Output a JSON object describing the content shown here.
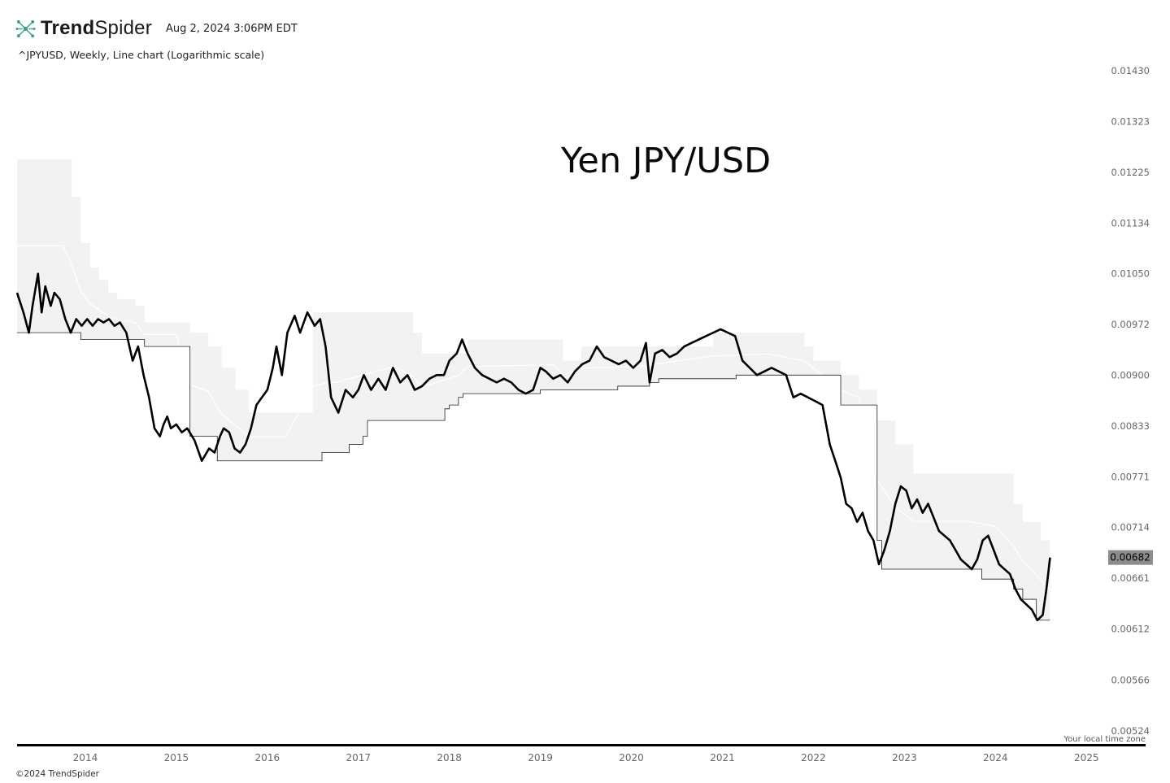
{
  "header": {
    "brand_bold": "Trend",
    "brand_light": "Spider",
    "timestamp": "Aug 2, 2024 3:06PM EDT",
    "subtitle": "^JPYUSD, Weekly, Line chart (Logarithmic scale)"
  },
  "footer": {
    "copyright": "©2024 TrendSpider",
    "timezone_note": "Your local time zone"
  },
  "chart_data": {
    "type": "line",
    "title": "Yen JPY/USD",
    "symbol": "^JPYUSD",
    "interval": "Weekly",
    "scale": "log",
    "ylim": [
      0.00513,
      0.0146
    ],
    "xlim": [
      2013.25,
      2025.65
    ],
    "y_ticks": [
      "0.01430",
      "0.01323",
      "0.01225",
      "0.01134",
      "0.01050",
      "0.00972",
      "0.00900",
      "0.00833",
      "0.00771",
      "0.00714",
      "0.00661",
      "0.00612",
      "0.00566",
      "0.00524"
    ],
    "x_ticks": [
      "2014",
      "2015",
      "2016",
      "2017",
      "2018",
      "2019",
      "2020",
      "2021",
      "2022",
      "2023",
      "2024",
      "2025"
    ],
    "last_value": "0.00682",
    "grid": false,
    "legend": "none",
    "colors": {
      "price_line": "#000000",
      "band_fill": "#f2f2f2",
      "mid_line": "#ffffff",
      "last_badge": "#8c8c8c"
    },
    "series": [
      {
        "role": "price",
        "x": [
          2013.25,
          2013.32,
          2013.38,
          2013.42,
          2013.48,
          2013.52,
          2013.56,
          2013.62,
          2013.66,
          2013.72,
          2013.78,
          2013.84,
          2013.9,
          2013.96,
          2014.02,
          2014.08,
          2014.14,
          2014.2,
          2014.26,
          2014.32,
          2014.38,
          2014.45,
          2014.52,
          2014.58,
          2014.64,
          2014.7,
          2014.76,
          2014.82,
          2014.86,
          2014.9,
          2014.94,
          2015.0,
          2015.06,
          2015.12,
          2015.2,
          2015.28,
          2015.36,
          2015.42,
          2015.48,
          2015.52,
          2015.58,
          2015.64,
          2015.7,
          2015.76,
          2015.82,
          2015.88,
          2015.94,
          2016.0,
          2016.06,
          2016.1,
          2016.16,
          2016.22,
          2016.3,
          2016.36,
          2016.44,
          2016.52,
          2016.58,
          2016.64,
          2016.7,
          2016.78,
          2016.86,
          2016.94,
          2017.0,
          2017.06,
          2017.14,
          2017.22,
          2017.3,
          2017.38,
          2017.46,
          2017.54,
          2017.62,
          2017.7,
          2017.78,
          2017.86,
          2017.94,
          2018.0,
          2018.08,
          2018.14,
          2018.2,
          2018.28,
          2018.36,
          2018.44,
          2018.52,
          2018.6,
          2018.68,
          2018.76,
          2018.84,
          2018.92,
          2019.0,
          2019.06,
          2019.14,
          2019.22,
          2019.3,
          2019.38,
          2019.46,
          2019.54,
          2019.62,
          2019.7,
          2019.78,
          2019.86,
          2019.94,
          2020.02,
          2020.1,
          2020.16,
          2020.2,
          2020.26,
          2020.34,
          2020.42,
          2020.5,
          2020.58,
          2020.66,
          2020.74,
          2020.82,
          2020.9,
          2020.98,
          2021.06,
          2021.14,
          2021.22,
          2021.3,
          2021.38,
          2021.46,
          2021.54,
          2021.62,
          2021.7,
          2021.78,
          2021.86,
          2021.94,
          2022.02,
          2022.1,
          2022.18,
          2022.24,
          2022.3,
          2022.36,
          2022.42,
          2022.48,
          2022.54,
          2022.6,
          2022.66,
          2022.72,
          2022.78,
          2022.84,
          2022.9,
          2022.96,
          2023.02,
          2023.08,
          2023.14,
          2023.2,
          2023.26,
          2023.32,
          2023.38,
          2023.44,
          2023.5,
          2023.56,
          2023.62,
          2023.68,
          2023.74,
          2023.8,
          2023.86,
          2023.92,
          2023.98,
          2024.04,
          2024.1,
          2024.16,
          2024.22,
          2024.28,
          2024.34,
          2024.4,
          2024.46,
          2024.52,
          2024.56,
          2024.6
        ],
        "values": [
          0.0102,
          0.0099,
          0.0096,
          0.01,
          0.0105,
          0.0099,
          0.0103,
          0.01,
          0.0102,
          0.0101,
          0.0098,
          0.0096,
          0.0098,
          0.0097,
          0.0098,
          0.0097,
          0.0098,
          0.00975,
          0.0098,
          0.0097,
          0.00975,
          0.0096,
          0.0092,
          0.0094,
          0.009,
          0.0087,
          0.0083,
          0.0082,
          0.00835,
          0.00845,
          0.0083,
          0.00835,
          0.00825,
          0.0083,
          0.00815,
          0.0079,
          0.00805,
          0.008,
          0.0082,
          0.0083,
          0.00825,
          0.00805,
          0.008,
          0.0081,
          0.0083,
          0.0086,
          0.0087,
          0.0088,
          0.0091,
          0.0094,
          0.009,
          0.0096,
          0.00985,
          0.0096,
          0.0099,
          0.0097,
          0.0098,
          0.0094,
          0.0087,
          0.0085,
          0.0088,
          0.0087,
          0.0088,
          0.009,
          0.0088,
          0.00895,
          0.0088,
          0.0091,
          0.0089,
          0.009,
          0.0088,
          0.00885,
          0.00895,
          0.009,
          0.009,
          0.0092,
          0.0093,
          0.0095,
          0.0093,
          0.0091,
          0.009,
          0.00895,
          0.0089,
          0.00895,
          0.0089,
          0.0088,
          0.00875,
          0.0088,
          0.0091,
          0.00905,
          0.00895,
          0.009,
          0.0089,
          0.00905,
          0.00915,
          0.0092,
          0.0094,
          0.00925,
          0.0092,
          0.00915,
          0.0092,
          0.0091,
          0.0092,
          0.00945,
          0.0089,
          0.0093,
          0.00935,
          0.00925,
          0.0093,
          0.0094,
          0.00945,
          0.0095,
          0.00955,
          0.0096,
          0.00965,
          0.0096,
          0.00955,
          0.0092,
          0.0091,
          0.009,
          0.00905,
          0.0091,
          0.00905,
          0.009,
          0.0087,
          0.00875,
          0.0087,
          0.00865,
          0.0086,
          0.0081,
          0.0079,
          0.0077,
          0.0074,
          0.00735,
          0.0072,
          0.0073,
          0.0071,
          0.007,
          0.00675,
          0.0069,
          0.0071,
          0.0074,
          0.0076,
          0.00755,
          0.00735,
          0.00745,
          0.0073,
          0.0074,
          0.00725,
          0.0071,
          0.00705,
          0.007,
          0.0069,
          0.0068,
          0.00675,
          0.0067,
          0.0068,
          0.007,
          0.00705,
          0.0069,
          0.00675,
          0.0067,
          0.00665,
          0.0065,
          0.0064,
          0.00635,
          0.0063,
          0.0062,
          0.00625,
          0.0065,
          0.00682
        ]
      },
      {
        "role": "channel-upper",
        "x": [
          2013.25,
          2013.75,
          2013.85,
          2013.95,
          2014.05,
          2014.15,
          2014.25,
          2014.35,
          2014.55,
          2014.65,
          2014.85,
          2015.0,
          2015.15,
          2015.35,
          2015.5,
          2015.65,
          2015.8,
          2016.2,
          2016.5,
          2016.65,
          2016.75,
          2017.4,
          2017.6,
          2017.7,
          2018.1,
          2018.2,
          2019.15,
          2019.25,
          2019.45,
          2020.1,
          2020.9,
          2021.0,
          2021.5,
          2021.9,
          2022.0,
          2022.3,
          2022.5,
          2022.7,
          2022.9,
          2023.1,
          2023.3,
          2023.5,
          2023.7,
          2024.0,
          2024.2,
          2024.3,
          2024.5,
          2024.6
        ],
        "values": [
          0.0125,
          0.0125,
          0.0118,
          0.011,
          0.0106,
          0.0104,
          0.0102,
          0.0101,
          0.01,
          0.00975,
          0.00975,
          0.00975,
          0.0096,
          0.0094,
          0.0091,
          0.0088,
          0.0085,
          0.0085,
          0.0099,
          0.0099,
          0.0099,
          0.0099,
          0.0096,
          0.0093,
          0.0093,
          0.0095,
          0.0095,
          0.0092,
          0.0094,
          0.0094,
          0.0096,
          0.0096,
          0.0096,
          0.0094,
          0.0092,
          0.009,
          0.0088,
          0.0084,
          0.0081,
          0.00775,
          0.00775,
          0.00775,
          0.00775,
          0.00775,
          0.0074,
          0.0072,
          0.007,
          0.0068
        ]
      },
      {
        "role": "channel-lower",
        "x": [
          2013.25,
          2013.35,
          2013.7,
          2013.95,
          2014.5,
          2014.65,
          2015.15,
          2015.4,
          2015.45,
          2015.9,
          2016.4,
          2016.6,
          2016.9,
          2017.05,
          2017.1,
          2017.9,
          2017.95,
          2018.0,
          2018.1,
          2018.15,
          2018.5,
          2019.0,
          2019.5,
          2019.8,
          2019.85,
          2020.2,
          2020.3,
          2021.0,
          2021.15,
          2022.0,
          2022.3,
          2022.7,
          2022.75,
          2023.7,
          2023.85,
          2024.15,
          2024.2,
          2024.3,
          2024.45,
          2024.6
        ],
        "values": [
          0.0096,
          0.0096,
          0.0096,
          0.0095,
          0.0095,
          0.0094,
          0.0082,
          0.0082,
          0.0079,
          0.0079,
          0.0079,
          0.008,
          0.0081,
          0.0082,
          0.0084,
          0.0084,
          0.00855,
          0.0086,
          0.0087,
          0.00875,
          0.00875,
          0.0088,
          0.0088,
          0.0088,
          0.00885,
          0.0089,
          0.00895,
          0.00895,
          0.009,
          0.009,
          0.0086,
          0.007,
          0.0067,
          0.0067,
          0.0066,
          0.0066,
          0.0065,
          0.0064,
          0.0062,
          0.0062
        ]
      }
    ]
  }
}
